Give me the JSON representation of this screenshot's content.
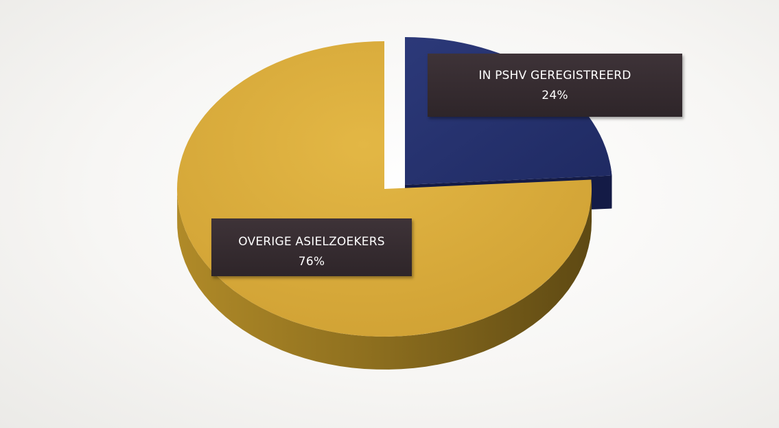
{
  "chart_data": {
    "type": "pie",
    "style": "3d-exploded",
    "slices": [
      {
        "label": "OVERIGE ASIELZOEKERS",
        "value": 76,
        "value_label": "76%",
        "color": "#dcae3b",
        "side_color": "#8a6c1e"
      },
      {
        "label": "IN PSHV GEREGISTREERD",
        "value": 24,
        "value_label": "24%",
        "color": "#26316e",
        "side_color": "#121842"
      }
    ],
    "legend": "none"
  }
}
